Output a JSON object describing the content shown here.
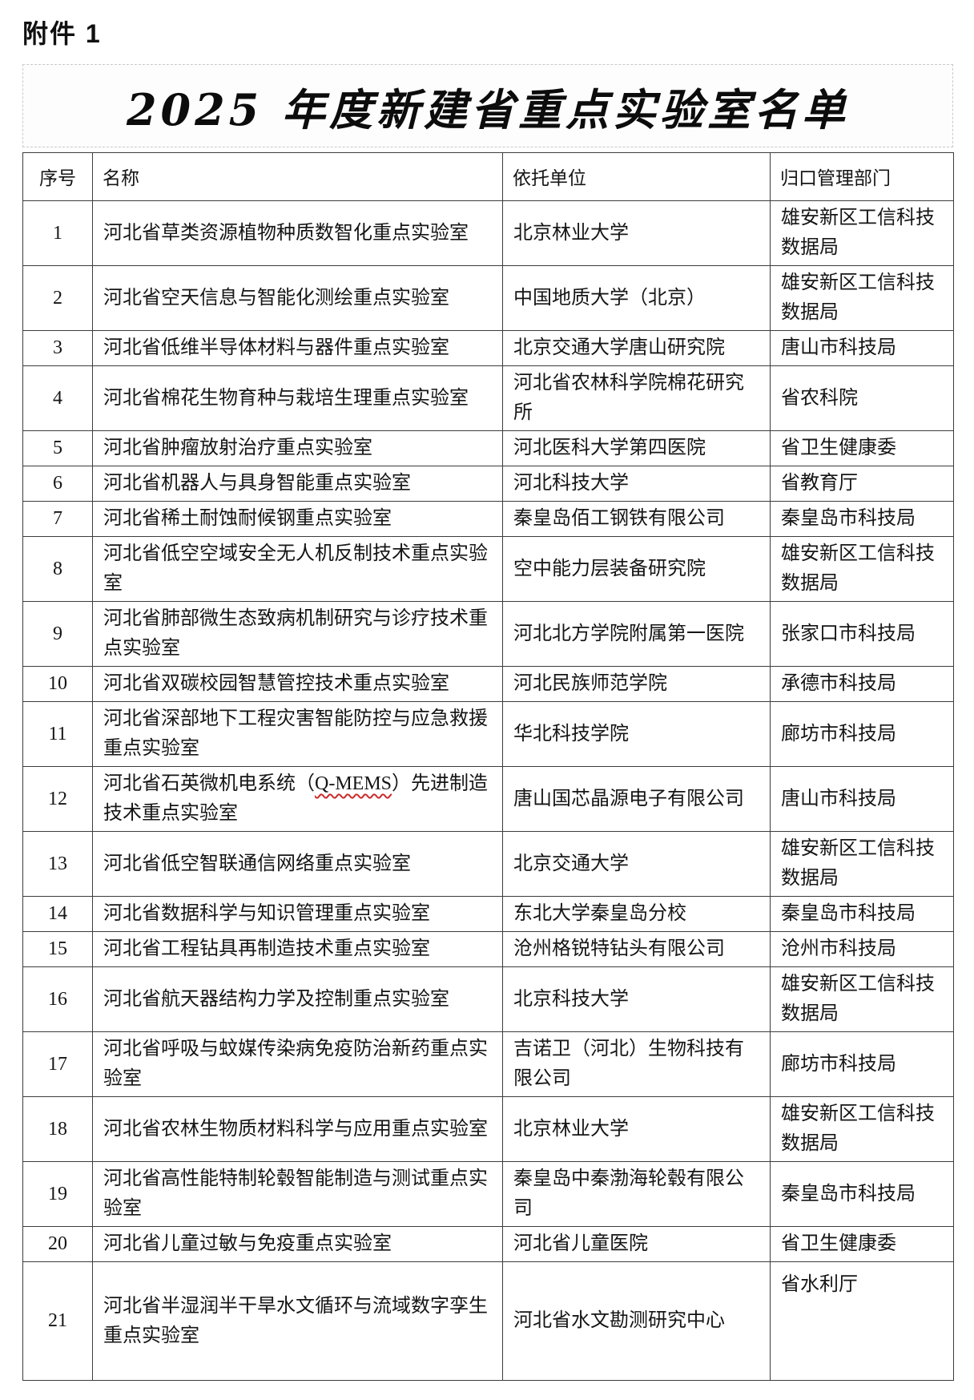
{
  "page": {
    "attachment_label": "附件 1",
    "title": "2025 年度新建省重点实验室名单"
  },
  "table": {
    "columns": [
      "序号",
      "名称",
      "依托单位",
      "归口管理部门"
    ],
    "rows": [
      {
        "no": "1",
        "name": "河北省草类资源植物种质数智化重点实验室",
        "unit": "北京林业大学",
        "dept": "雄安新区工信科技数据局"
      },
      {
        "no": "2",
        "name": "河北省空天信息与智能化测绘重点实验室",
        "unit": "中国地质大学（北京）",
        "dept": "雄安新区工信科技数据局"
      },
      {
        "no": "3",
        "name": "河北省低维半导体材料与器件重点实验室",
        "unit": "北京交通大学唐山研究院",
        "dept": "唐山市科技局"
      },
      {
        "no": "4",
        "name": "河北省棉花生物育种与栽培生理重点实验室",
        "unit": "河北省农林科学院棉花研究所",
        "dept": "省农科院"
      },
      {
        "no": "5",
        "name": "河北省肿瘤放射治疗重点实验室",
        "unit": "河北医科大学第四医院",
        "dept": "省卫生健康委"
      },
      {
        "no": "6",
        "name": "河北省机器人与具身智能重点实验室",
        "unit": "河北科技大学",
        "dept": "省教育厅"
      },
      {
        "no": "7",
        "name": "河北省稀土耐蚀耐候钢重点实验室",
        "unit": "秦皇岛佰工钢铁有限公司",
        "dept": "秦皇岛市科技局"
      },
      {
        "no": "8",
        "name": "河北省低空空域安全无人机反制技术重点实验室",
        "unit": "空中能力层装备研究院",
        "dept": "雄安新区工信科技数据局"
      },
      {
        "no": "9",
        "name": "河北省肺部微生态致病机制研究与诊疗技术重点实验室",
        "unit": "河北北方学院附属第一医院",
        "dept": "张家口市科技局"
      },
      {
        "no": "10",
        "name": "河北省双碳校园智慧管控技术重点实验室",
        "unit": "河北民族师范学院",
        "dept": "承德市科技局"
      },
      {
        "no": "11",
        "name": "河北省深部地下工程灾害智能防控与应急救援重点实验室",
        "unit": "华北科技学院",
        "dept": "廊坊市科技局"
      },
      {
        "no": "12",
        "name": "河北省石英微机电系统（Q-MEMS）先进制造技术重点实验室",
        "spellcheck": "Q-MEMS",
        "unit": "唐山国芯晶源电子有限公司",
        "dept": "唐山市科技局"
      },
      {
        "no": "13",
        "name": "河北省低空智联通信网络重点实验室",
        "unit": "北京交通大学",
        "dept": "雄安新区工信科技数据局"
      },
      {
        "no": "14",
        "name": "河北省数据科学与知识管理重点实验室",
        "unit": "东北大学秦皇岛分校",
        "dept": "秦皇岛市科技局"
      },
      {
        "no": "15",
        "name": "河北省工程钻具再制造技术重点实验室",
        "unit": "沧州格锐特钻头有限公司",
        "dept": "沧州市科技局"
      },
      {
        "no": "16",
        "name": "河北省航天器结构力学及控制重点实验室",
        "unit": "北京科技大学",
        "dept": "雄安新区工信科技数据局"
      },
      {
        "no": "17",
        "name": "河北省呼吸与蚊媒传染病免疫防治新药重点实验室",
        "unit": "吉诺卫（河北）生物科技有限公司",
        "dept": "廊坊市科技局"
      },
      {
        "no": "18",
        "name": "河北省农林生物质材料科学与应用重点实验室",
        "unit": "北京林业大学",
        "dept": "雄安新区工信科技数据局"
      },
      {
        "no": "19",
        "name": "河北省高性能特制轮毂智能制造与测试重点实验室",
        "unit": "秦皇岛中秦渤海轮毂有限公司",
        "dept": "秦皇岛市科技局"
      },
      {
        "no": "20",
        "name": "河北省儿童过敏与免疫重点实验室",
        "unit": "河北省儿童医院",
        "dept": "省卫生健康委"
      },
      {
        "no": "21",
        "name": "河北省半湿润半干旱水文循环与流域数字孪生重点实验室",
        "unit": "河北省水文勘测研究中心",
        "dept": "省水利厅"
      }
    ]
  },
  "colors": {
    "text": "#151515",
    "table_border": "#3c3c3c",
    "title_border": "#c9c9c9",
    "title_bg": "#fdfdfd",
    "background": "#ffffff",
    "spellcheck": "#cc2b2b"
  }
}
